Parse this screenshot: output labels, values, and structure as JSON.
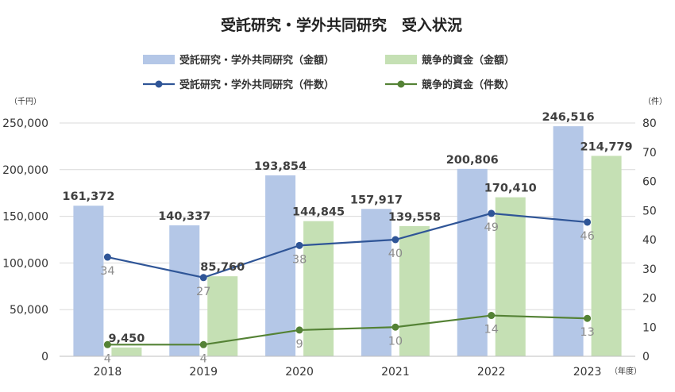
{
  "chart_data": {
    "type": "bar",
    "title": "受託研究・学外共同研究　受入状況",
    "left_unit": "（千円）",
    "right_unit": "（件）",
    "x_unit": "（年度）",
    "categories": [
      "2018",
      "2019",
      "2020",
      "2021",
      "2022",
      "2023"
    ],
    "ylim": [
      0,
      250000
    ],
    "y_ticks": [
      0,
      50000,
      100000,
      150000,
      200000,
      250000
    ],
    "y_tick_labels": [
      "0",
      "50,000",
      "100,000",
      "150,000",
      "200,000",
      "250,000"
    ],
    "y2lim": [
      0,
      80
    ],
    "y2_ticks": [
      0,
      10,
      20,
      30,
      40,
      50,
      60,
      70,
      80
    ],
    "y2_tick_labels": [
      "0",
      "10",
      "20",
      "30",
      "40",
      "50",
      "60",
      "70",
      "80"
    ],
    "grid": true,
    "legend_position": "top",
    "bar_series": [
      {
        "name": "受託研究・学外共同研究（金額）",
        "color": "#b4c7e7",
        "values": [
          161372,
          140337,
          193854,
          157917,
          200806,
          246516
        ],
        "labels": [
          "161,372",
          "140,337",
          "193,854",
          "157,917",
          "200,806",
          "246,516"
        ]
      },
      {
        "name": "競争的資金（金額）",
        "color": "#c5e0b4",
        "values": [
          9450,
          85760,
          144845,
          139558,
          170410,
          214779
        ],
        "labels": [
          "9,450",
          "85,760",
          "144,845",
          "139,558",
          "170,410",
          "214,779"
        ]
      }
    ],
    "line_series": [
      {
        "name": "受託研究・学外共同研究（件数）",
        "color": "#2f5597",
        "axis": "right",
        "values": [
          34,
          27,
          38,
          40,
          49,
          46
        ],
        "labels": [
          "34",
          "27",
          "38",
          "40",
          "49",
          "46"
        ]
      },
      {
        "name": "競争的資金（件数）",
        "color": "#548235",
        "axis": "right",
        "values": [
          4,
          4,
          9,
          10,
          14,
          13
        ],
        "labels": [
          "4",
          "4",
          "9",
          "10",
          "14",
          "13"
        ]
      }
    ]
  }
}
